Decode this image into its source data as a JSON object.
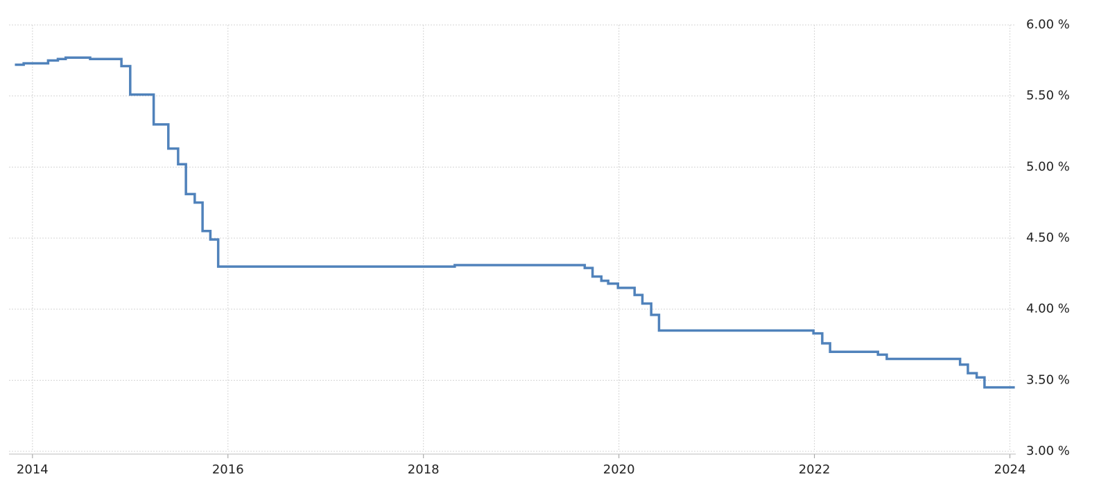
{
  "chart_data": {
    "type": "line",
    "step": "post",
    "grid": true,
    "color": "#5082bb",
    "x": [
      2013.82,
      2013.91,
      2014.16,
      2014.26,
      2014.34,
      2014.59,
      2014.91,
      2015.0,
      2015.24,
      2015.39,
      2015.49,
      2015.57,
      2015.66,
      2015.74,
      2015.82,
      2015.9,
      2018.32,
      2019.65,
      2019.73,
      2019.82,
      2019.89,
      2019.99,
      2020.16,
      2020.24,
      2020.33,
      2020.41,
      2021.99,
      2022.08,
      2022.16,
      2022.65,
      2022.74,
      2023.49,
      2023.57,
      2023.66,
      2023.74,
      2024.05
    ],
    "values": [
      5.72,
      5.73,
      5.75,
      5.76,
      5.77,
      5.76,
      5.71,
      5.51,
      5.3,
      5.13,
      5.02,
      4.81,
      4.75,
      4.55,
      4.49,
      4.3,
      4.31,
      4.29,
      4.23,
      4.2,
      4.18,
      4.15,
      4.1,
      4.04,
      3.96,
      3.85,
      3.83,
      3.76,
      3.7,
      3.68,
      3.65,
      3.61,
      3.55,
      3.52,
      3.45,
      3.45
    ],
    "xlim": [
      2013.76,
      2024.06
    ],
    "xticks": [
      2014,
      2016,
      2018,
      2020,
      2022,
      2024
    ],
    "ylim": [
      3.0,
      6.0
    ],
    "yticks": [
      {
        "value": 3.0,
        "label": "3.00 %"
      },
      {
        "value": 3.5,
        "label": "3.50 %"
      },
      {
        "value": 4.0,
        "label": "4.00 %"
      },
      {
        "value": 4.5,
        "label": "4.50 %"
      },
      {
        "value": 5.0,
        "label": "5.00 %"
      },
      {
        "value": 5.5,
        "label": "5.50 %"
      },
      {
        "value": 6.0,
        "label": "6.00 %"
      }
    ]
  }
}
